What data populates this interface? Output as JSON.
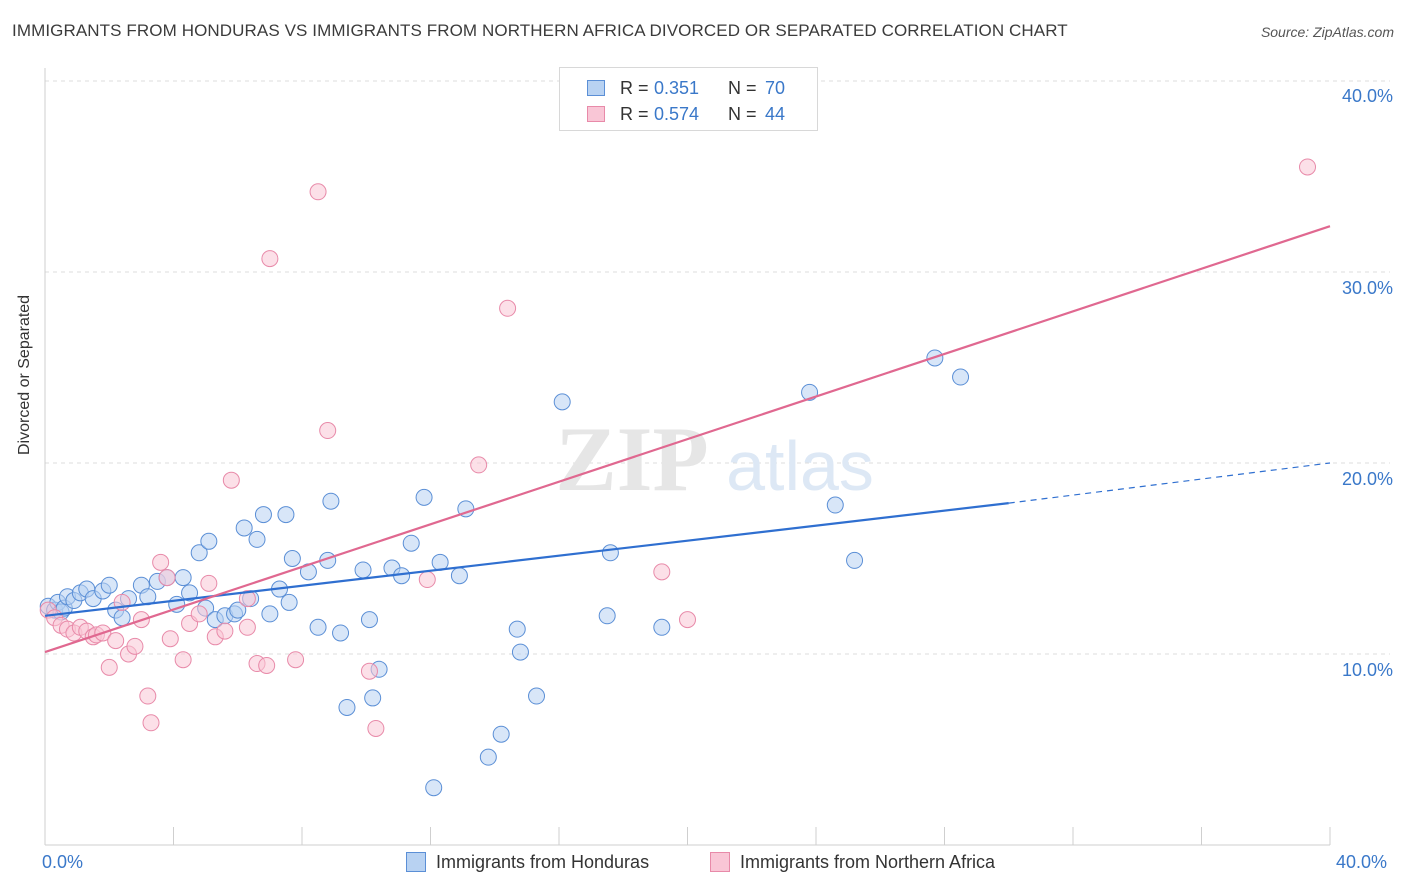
{
  "title": "IMMIGRANTS FROM HONDURAS VS IMMIGRANTS FROM NORTHERN AFRICA DIVORCED OR SEPARATED CORRELATION CHART",
  "source": "Source: ZipAtlas.com",
  "watermark": {
    "zip": "ZIP",
    "atlas": "atlas"
  },
  "legend": {
    "r_label": "R =",
    "n_label": "N =",
    "honduras": {
      "r": "0.351",
      "n": "70"
    },
    "nafrica": {
      "r": "0.574",
      "n": "44"
    }
  },
  "colors": {
    "honduras_fill": "#b8d2f2",
    "honduras_stroke": "#5b8fd6",
    "honduras_line": "#2f6fd0",
    "nafrica_fill": "#f9c6d6",
    "nafrica_stroke": "#e88aa9",
    "nafrica_line": "#e06890",
    "tick_text": "#3a78c9",
    "grid": "#dcdcdc"
  },
  "chart_data": {
    "type": "scatter",
    "title": "IMMIGRANTS FROM HONDURAS VS IMMIGRANTS FROM NORTHERN AFRICA DIVORCED OR SEPARATED CORRELATION CHART",
    "xlabel": "",
    "ylabel": "Divorced or Separated",
    "xlim": [
      0,
      40
    ],
    "ylim": [
      0,
      40
    ],
    "x_tick_labels": [
      "0.0%",
      "40.0%"
    ],
    "y_ticks": [
      10,
      20,
      30,
      40
    ],
    "y_tick_labels": [
      "10.0%",
      "20.0%",
      "30.0%",
      "40.0%"
    ],
    "grid": true,
    "legend_position": "top-center",
    "series": [
      {
        "name": "Immigrants from Honduras",
        "R": 0.351,
        "N": 70,
        "trend": {
          "x0": 0,
          "y0": 12.0,
          "x1": 30.0,
          "y1": 17.9,
          "dashed_to_x": 40,
          "dashed_to_y": 20.0
        },
        "points": [
          [
            0.1,
            12.5
          ],
          [
            0.3,
            12.3
          ],
          [
            0.4,
            12.7
          ],
          [
            0.5,
            12.2
          ],
          [
            0.6,
            12.4
          ],
          [
            0.7,
            13.0
          ],
          [
            0.9,
            12.8
          ],
          [
            1.1,
            13.2
          ],
          [
            1.3,
            13.4
          ],
          [
            1.5,
            12.9
          ],
          [
            1.8,
            13.3
          ],
          [
            2.0,
            13.6
          ],
          [
            2.2,
            12.3
          ],
          [
            2.4,
            11.9
          ],
          [
            2.6,
            12.9
          ],
          [
            3.0,
            13.6
          ],
          [
            3.2,
            13.0
          ],
          [
            3.5,
            13.8
          ],
          [
            3.8,
            14.0
          ],
          [
            4.1,
            12.6
          ],
          [
            4.3,
            14.0
          ],
          [
            4.5,
            13.2
          ],
          [
            4.8,
            15.3
          ],
          [
            5.0,
            12.4
          ],
          [
            5.1,
            15.9
          ],
          [
            5.3,
            11.8
          ],
          [
            5.6,
            12.0
          ],
          [
            5.9,
            12.1
          ],
          [
            6.0,
            12.3
          ],
          [
            6.2,
            16.6
          ],
          [
            6.4,
            12.9
          ],
          [
            6.6,
            16.0
          ],
          [
            6.8,
            17.3
          ],
          [
            7.0,
            12.1
          ],
          [
            7.3,
            13.4
          ],
          [
            7.5,
            17.3
          ],
          [
            7.6,
            12.7
          ],
          [
            7.7,
            15.0
          ],
          [
            8.2,
            14.3
          ],
          [
            8.5,
            11.4
          ],
          [
            8.8,
            14.9
          ],
          [
            8.9,
            18.0
          ],
          [
            9.2,
            11.1
          ],
          [
            9.4,
            7.2
          ],
          [
            9.9,
            14.4
          ],
          [
            10.1,
            11.8
          ],
          [
            10.2,
            7.7
          ],
          [
            10.4,
            9.2
          ],
          [
            10.8,
            14.5
          ],
          [
            11.1,
            14.1
          ],
          [
            11.4,
            15.8
          ],
          [
            11.8,
            18.2
          ],
          [
            12.1,
            3.0
          ],
          [
            12.3,
            14.8
          ],
          [
            12.9,
            14.1
          ],
          [
            13.1,
            17.6
          ],
          [
            13.8,
            4.6
          ],
          [
            14.2,
            5.8
          ],
          [
            14.7,
            11.3
          ],
          [
            14.8,
            10.1
          ],
          [
            15.3,
            7.8
          ],
          [
            16.1,
            23.2
          ],
          [
            17.5,
            12.0
          ],
          [
            17.6,
            15.3
          ],
          [
            19.2,
            11.4
          ],
          [
            23.8,
            23.7
          ],
          [
            24.6,
            17.8
          ],
          [
            25.2,
            14.9
          ],
          [
            27.7,
            25.5
          ],
          [
            28.5,
            24.5
          ]
        ]
      },
      {
        "name": "Immigrants from Northern Africa",
        "R": 0.574,
        "N": 44,
        "trend": {
          "x0": 0,
          "y0": 10.1,
          "x1": 40,
          "y1": 32.4
        },
        "points": [
          [
            0.1,
            12.3
          ],
          [
            0.3,
            11.9
          ],
          [
            0.5,
            11.5
          ],
          [
            0.7,
            11.3
          ],
          [
            0.9,
            11.1
          ],
          [
            1.1,
            11.4
          ],
          [
            1.3,
            11.2
          ],
          [
            1.5,
            10.9
          ],
          [
            1.6,
            11.0
          ],
          [
            1.8,
            11.1
          ],
          [
            2.0,
            9.3
          ],
          [
            2.2,
            10.7
          ],
          [
            2.4,
            12.7
          ],
          [
            2.6,
            10.0
          ],
          [
            2.8,
            10.4
          ],
          [
            3.0,
            11.8
          ],
          [
            3.2,
            7.8
          ],
          [
            3.3,
            6.4
          ],
          [
            3.6,
            14.8
          ],
          [
            3.8,
            14.0
          ],
          [
            3.9,
            10.8
          ],
          [
            4.3,
            9.7
          ],
          [
            4.5,
            11.6
          ],
          [
            4.8,
            12.1
          ],
          [
            5.1,
            13.7
          ],
          [
            5.3,
            10.9
          ],
          [
            5.6,
            11.2
          ],
          [
            5.8,
            19.1
          ],
          [
            6.3,
            11.4
          ],
          [
            6.3,
            12.9
          ],
          [
            6.6,
            9.5
          ],
          [
            6.9,
            9.4
          ],
          [
            7.0,
            30.7
          ],
          [
            7.8,
            9.7
          ],
          [
            8.5,
            34.2
          ],
          [
            8.8,
            21.7
          ],
          [
            10.1,
            9.1
          ],
          [
            10.3,
            6.1
          ],
          [
            11.9,
            13.9
          ],
          [
            13.5,
            19.9
          ],
          [
            14.4,
            28.1
          ],
          [
            19.2,
            14.3
          ],
          [
            20.0,
            11.8
          ],
          [
            39.3,
            35.5
          ]
        ]
      }
    ]
  },
  "bottom_legend": {
    "honduras": "Immigrants from Honduras",
    "nafrica": "Immigrants from Northern Africa"
  }
}
